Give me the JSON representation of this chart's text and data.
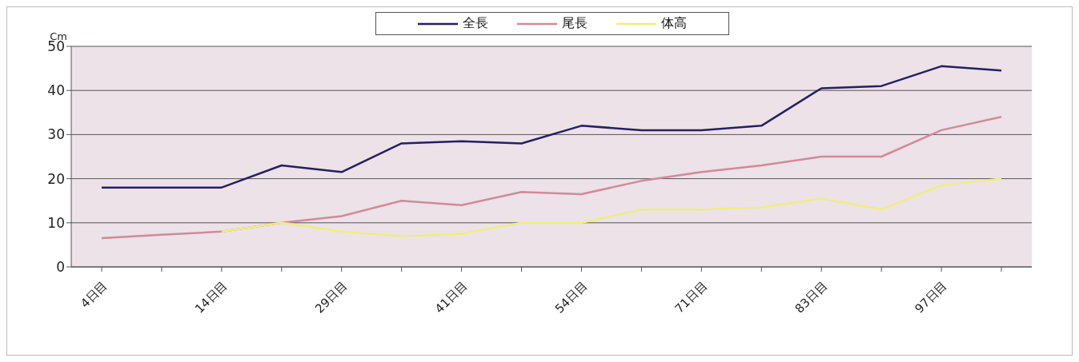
{
  "chart_data": {
    "type": "line",
    "ylabel": "Cm",
    "categories": [
      "4日目",
      null,
      "14日目",
      null,
      "29日目",
      null,
      "41日目",
      null,
      "54日目",
      null,
      "71日目",
      null,
      "83日目",
      null,
      "97日目",
      null
    ],
    "series": [
      {
        "name": "全長",
        "color": "#252060",
        "values": [
          18,
          18,
          18,
          23,
          21.5,
          28,
          28.5,
          28,
          32,
          31,
          31,
          32,
          40.5,
          41,
          45.5,
          44.5
        ]
      },
      {
        "name": "尾長",
        "color": "#d08a9a",
        "values": [
          6.5,
          7.3,
          8,
          10,
          11.5,
          15,
          14,
          17,
          16.5,
          19.5,
          21.5,
          23,
          25,
          25,
          31,
          34
        ]
      },
      {
        "name": "体高",
        "color": "#eeee80",
        "values": [
          null,
          null,
          8,
          10,
          8,
          7,
          7.5,
          10,
          10,
          13,
          13,
          13.5,
          15.5,
          13,
          18.5,
          20
        ]
      }
    ],
    "ylim": [
      0,
      50
    ],
    "yticks": [
      0,
      10,
      20,
      30,
      40,
      50
    ],
    "grid": "y",
    "legend": "top",
    "marker": "none"
  }
}
